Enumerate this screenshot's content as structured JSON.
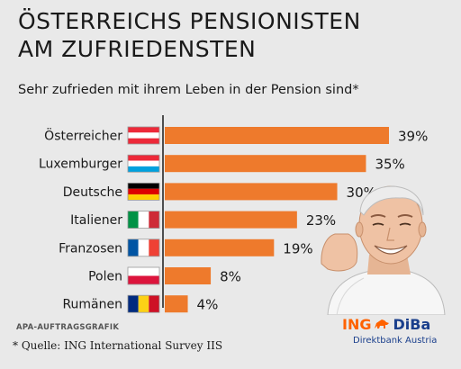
{
  "title_line1": "ÖSTERREICHS PENSIONISTEN",
  "title_line2": "AM ZUFRIEDENSTEN",
  "subtitle": "Sehr zufrieden mit ihrem Leben in der Pension sind*",
  "credit": "APA-AUFTRAGSGRAFIK",
  "source": "* Quelle: ING International Survey IIS",
  "logo": {
    "ing": "ING",
    "diba": "DiBa",
    "tagline": "Direktbank Austria"
  },
  "colors": {
    "bar": "#ee7a2c",
    "background": "#e9e9e9",
    "brand_orange": "#ff6200",
    "brand_blue": "#1a3f8c"
  },
  "chart_data": {
    "type": "bar",
    "orientation": "horizontal",
    "title": "ÖSTERREICHS PENSIONISTEN AM ZUFRIEDENSTEN",
    "subtitle": "Sehr zufrieden mit ihrem Leben in der Pension sind*",
    "categories": [
      "Österreicher",
      "Luxemburger",
      "Deutsche",
      "Italiener",
      "Franzosen",
      "Polen",
      "Rumänen"
    ],
    "values": [
      39,
      35,
      30,
      23,
      19,
      8,
      4
    ],
    "value_labels": [
      "39%",
      "35%",
      "30%",
      "23%",
      "19%",
      "8%",
      "4%"
    ],
    "flags": [
      "flag-austria",
      "flag-luxembourg",
      "flag-germany",
      "flag-italy",
      "flag-france",
      "flag-poland",
      "flag-romania"
    ],
    "xlim": [
      0,
      39
    ],
    "unit": "%"
  }
}
